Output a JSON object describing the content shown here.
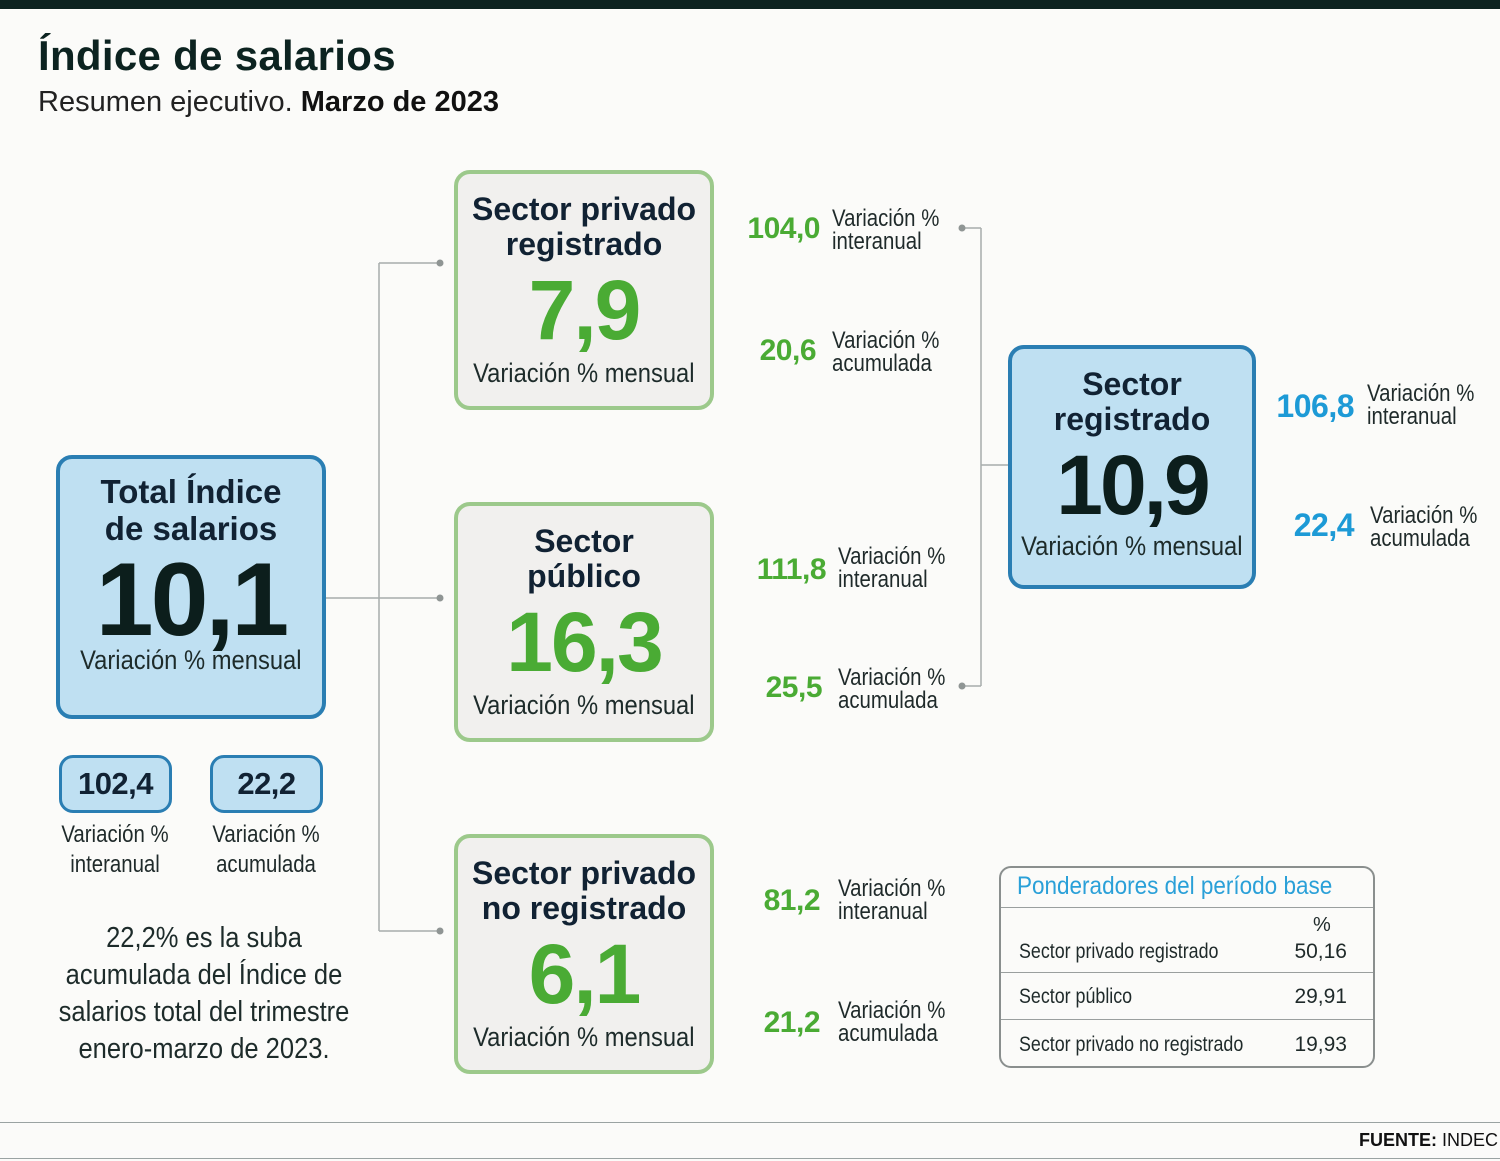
{
  "header": {
    "title": "Índice de salarios",
    "subtitle_prefix": "Resumen ejecutivo.",
    "subtitle_bold": "Marzo de 2023"
  },
  "total": {
    "title_line1": "Total Índice",
    "title_line2": "de salarios",
    "value": "10,1",
    "sub": "Variación % mensual",
    "interanual": {
      "value": "102,4",
      "label_line1": "Variación %",
      "label_line2": "interanual"
    },
    "acumulada": {
      "value": "22,2",
      "label_line1": "Variación %",
      "label_line2": "acumulada"
    },
    "note_lines": [
      "22,2% es la suba",
      "acumulada del Índice de",
      "salarios total del trimestre",
      "enero-marzo de 2023."
    ]
  },
  "sectors": [
    {
      "title_line1": "Sector privado",
      "title_line2": "registrado",
      "value": "7,9",
      "sub": "Variación % mensual",
      "interanual": "104,0",
      "acumulada": "20,6"
    },
    {
      "title_line1": "Sector",
      "title_line2": "público",
      "value": "16,3",
      "sub": "Variación % mensual",
      "interanual": "111,8",
      "acumulada": "25,5"
    },
    {
      "title_line1": "Sector privado",
      "title_line2": "no registrado",
      "value": "6,1",
      "sub": "Variación % mensual",
      "interanual": "81,2",
      "acumulada": "21,2"
    }
  ],
  "labels": {
    "variacion": "Variación %",
    "interanual": "interanual",
    "acumulada": "acumulada"
  },
  "registrado": {
    "title_line1": "Sector",
    "title_line2": "registrado",
    "value": "10,9",
    "sub": "Variación % mensual",
    "interanual": "106,8",
    "acumulada": "22,4"
  },
  "ponderadores": {
    "heading": "Ponderadores del período base",
    "unit": "%",
    "rows": [
      {
        "name": "Sector privado registrado",
        "value": "50,16"
      },
      {
        "name": "Sector público",
        "value": "29,91"
      },
      {
        "name": "Sector privado no registrado",
        "value": "19,93"
      }
    ]
  },
  "footer": {
    "source_label": "FUENTE:",
    "source_value": "INDEC"
  },
  "colors": {
    "green": "#4aab34",
    "blue": "#1d9ad6",
    "box_blue": "#bfe0f2",
    "border_blue": "#2a7eb3",
    "border_green": "#9cc98b"
  }
}
